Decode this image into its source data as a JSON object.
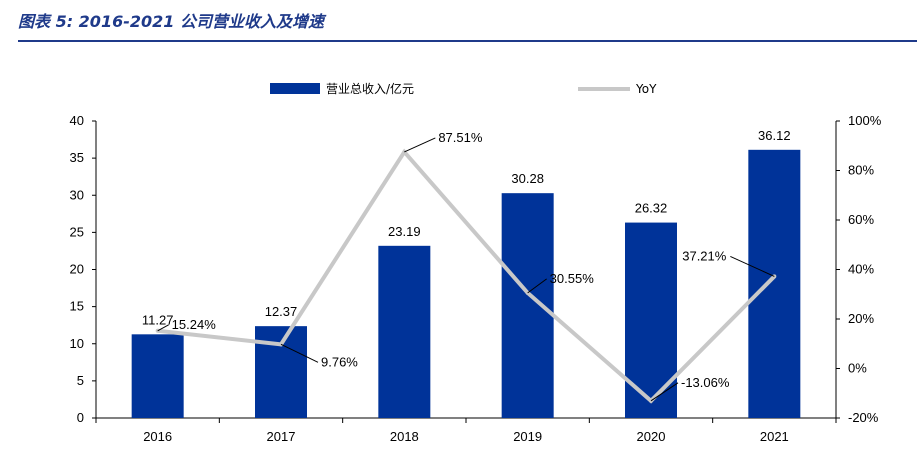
{
  "figure": {
    "title": "图表 5:  2016-2021 公司营业收入及增速"
  },
  "chart_data": {
    "type": "bar",
    "categories": [
      "2016",
      "2017",
      "2018",
      "2019",
      "2020",
      "2021"
    ],
    "series": [
      {
        "name": "营业总收入/亿元",
        "type": "bar",
        "axis": "left",
        "color": "#003399",
        "values": [
          11.27,
          12.37,
          23.19,
          30.28,
          26.32,
          36.12
        ],
        "labels": [
          "11.27",
          "12.37",
          "23.19",
          "30.28",
          "26.32",
          "36.12"
        ]
      },
      {
        "name": "YoY",
        "type": "line",
        "axis": "right",
        "color": "#c8c8c8",
        "values": [
          15.24,
          9.76,
          87.51,
          30.55,
          -13.06,
          37.21
        ],
        "labels": [
          "15.24%",
          "9.76%",
          "87.51%",
          "30.55%",
          "-13.06%",
          "37.21%"
        ]
      }
    ],
    "y_left": {
      "min": 0,
      "max": 40,
      "ticks": [
        "0",
        "5",
        "10",
        "15",
        "20",
        "25",
        "30",
        "35",
        "40"
      ]
    },
    "y_right": {
      "min": -20,
      "max": 100,
      "ticks": [
        "-20%",
        "0%",
        "20%",
        "40%",
        "60%",
        "80%",
        "100%"
      ]
    },
    "legend": "top-center",
    "grid": false
  }
}
